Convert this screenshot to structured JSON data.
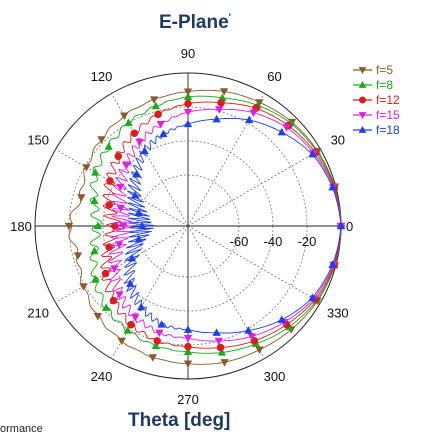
{
  "chart_data": {
    "type": "polar-line",
    "title": "E-Plane",
    "title_mark": "'",
    "xlabel": "Theta [deg]",
    "angle_ticks": [
      {
        "deg": 0,
        "label": "0"
      },
      {
        "deg": 30,
        "label": "30"
      },
      {
        "deg": 60,
        "label": "60"
      },
      {
        "deg": 90,
        "label": "90"
      },
      {
        "deg": 120,
        "label": "120"
      },
      {
        "deg": 150,
        "label": "150"
      },
      {
        "deg": 180,
        "label": "180"
      },
      {
        "deg": 210,
        "label": "210"
      },
      {
        "deg": 240,
        "label": "240"
      },
      {
        "deg": 270,
        "label": "270"
      },
      {
        "deg": 300,
        "label": "300"
      },
      {
        "deg": 330,
        "label": "330"
      }
    ],
    "radial_ticks": [
      {
        "value": -60,
        "label": "-60"
      },
      {
        "value": -40,
        "label": "-40"
      },
      {
        "value": -20,
        "label": "-20"
      },
      {
        "value": 0,
        "label": "0"
      }
    ],
    "rlim": [
      -90,
      0
    ],
    "grid": true,
    "legend_position": "top-right",
    "series": [
      {
        "name": "f=5",
        "color": "#8b5a2b",
        "marker": "triangle-down",
        "theta": [
          0,
          15,
          30,
          45,
          60,
          75,
          90,
          105,
          120,
          135,
          150,
          165,
          180,
          195,
          210,
          225,
          240,
          255,
          270,
          285,
          300,
          315,
          330,
          345
        ],
        "r": [
          0,
          -0.5,
          -2,
          -3.5,
          -6,
          -8,
          -11,
          -13,
          -15,
          -18,
          -21,
          -25,
          -20,
          -23,
          -19,
          -15,
          -12,
          -10,
          -9,
          -7,
          -6,
          -4,
          -2,
          -0.5
        ]
      },
      {
        "name": "f=8",
        "color": "#1aaa1a",
        "marker": "triangle-up",
        "theta": [
          0,
          15,
          30,
          45,
          60,
          75,
          90,
          105,
          120,
          135,
          150,
          165,
          180,
          195,
          210,
          225,
          240,
          255,
          270,
          285,
          300,
          315,
          330,
          345
        ],
        "r": [
          0,
          -0.8,
          -2.5,
          -4.5,
          -8,
          -12,
          -14,
          -17,
          -20,
          -24,
          -27,
          -33,
          -37,
          -33,
          -27,
          -22,
          -19,
          -17,
          -16,
          -13,
          -10,
          -6,
          -2.5,
          -0.8
        ]
      },
      {
        "name": "f=12",
        "color": "#d42020",
        "marker": "circle",
        "theta": [
          0,
          15,
          30,
          45,
          60,
          75,
          90,
          105,
          120,
          135,
          150,
          165,
          180,
          195,
          210,
          225,
          240,
          255,
          270,
          285,
          300,
          315,
          330,
          345
        ],
        "r": [
          0,
          -1,
          -3.5,
          -6.5,
          -10,
          -15,
          -18,
          -22,
          -27,
          -32,
          -37,
          -42,
          -47,
          -42,
          -34,
          -28,
          -23,
          -20,
          -19,
          -16,
          -12,
          -8,
          -3.5,
          -1
        ]
      },
      {
        "name": "f=15",
        "color": "#e020e0",
        "marker": "triangle-down",
        "theta": [
          0,
          15,
          30,
          45,
          60,
          75,
          90,
          105,
          120,
          135,
          150,
          165,
          180,
          195,
          210,
          225,
          240,
          255,
          270,
          285,
          300,
          315,
          330,
          345
        ],
        "r": [
          0,
          -1.5,
          -4.5,
          -8,
          -13,
          -19,
          -23,
          -28,
          -33,
          -39,
          -44,
          -49,
          -52,
          -48,
          -40,
          -33,
          -28,
          -25,
          -24,
          -20,
          -15,
          -10,
          -4.5,
          -1.5
        ]
      },
      {
        "name": "f=18",
        "color": "#2040e0",
        "marker": "triangle-up",
        "theta": [
          0,
          15,
          30,
          45,
          60,
          75,
          90,
          105,
          120,
          135,
          150,
          165,
          180,
          195,
          210,
          225,
          240,
          255,
          270,
          285,
          300,
          315,
          330,
          345
        ],
        "r": [
          0,
          -2,
          -5.5,
          -12,
          -18,
          -25,
          -30,
          -34,
          -39,
          -47,
          -54,
          -60,
          -63,
          -60,
          -52,
          -42,
          -35,
          -30,
          -29,
          -25,
          -19,
          -12,
          -5.5,
          -2
        ]
      }
    ]
  },
  "footer": {
    "cut_text": "ormance"
  }
}
